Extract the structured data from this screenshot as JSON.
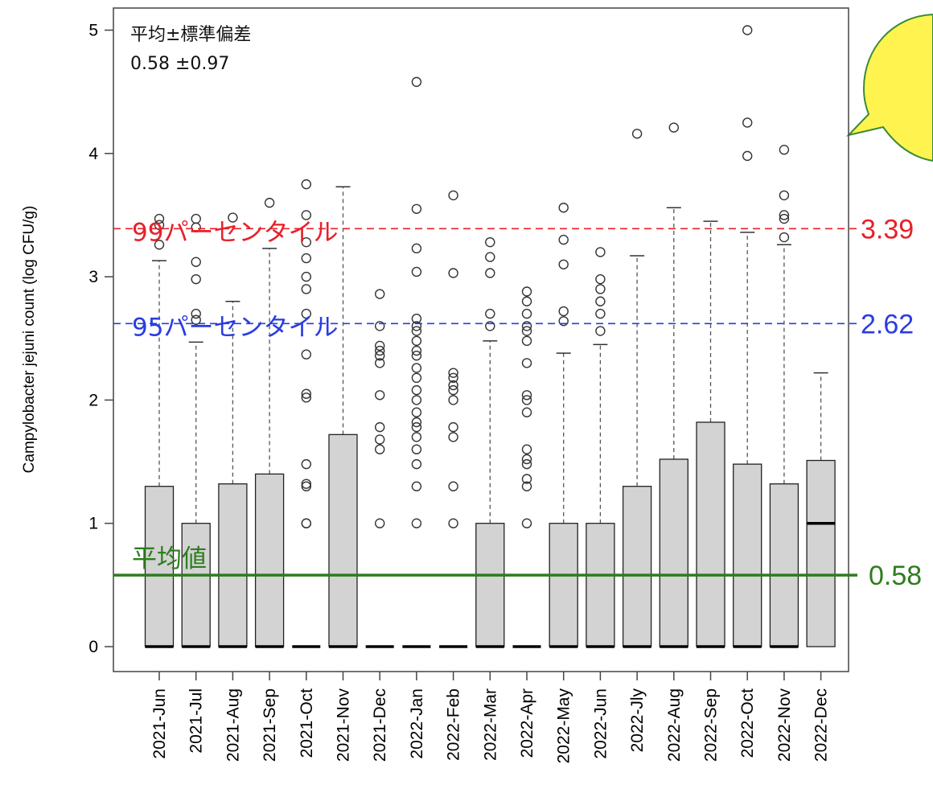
{
  "chart_data": {
    "type": "box",
    "title": "",
    "xlabel": "",
    "ylabel": "Campylobacter jejuni count (log CFU/g)",
    "ylim": [
      0,
      5
    ],
    "yticks": [
      "0",
      "1",
      "2",
      "3",
      "4",
      "5"
    ],
    "grid": false,
    "categories": [
      "2021-Jun",
      "2021-Jul",
      "2021-Aug",
      "2021-Sep",
      "2021-Oct",
      "2021-Nov",
      "2021-Dec",
      "2022-Jan",
      "2022-Feb",
      "2022-Mar",
      "2022-Apr",
      "2022-May",
      "2022-Jun",
      "2022-Jly",
      "2022-Aug",
      "2022-Sep",
      "2022-Oct",
      "2022-Nov",
      "2022-Dec"
    ],
    "boxes": [
      {
        "min": 0,
        "q1": 0,
        "median": 0,
        "q3": 1.3,
        "max": 3.13,
        "outliers": [
          3.26,
          3.42,
          3.47
        ]
      },
      {
        "min": 0,
        "q1": 0,
        "median": 0,
        "q3": 1.0,
        "max": 2.47,
        "outliers": [
          2.65,
          2.7,
          2.98,
          3.12,
          3.4,
          3.47
        ]
      },
      {
        "min": 0,
        "q1": 0,
        "median": 0,
        "q3": 1.32,
        "max": 2.8,
        "outliers": [
          3.48
        ]
      },
      {
        "min": 0,
        "q1": 0,
        "median": 0,
        "q3": 1.4,
        "max": 3.23,
        "outliers": [
          3.6
        ]
      },
      {
        "min": 0,
        "q1": 0,
        "median": 0,
        "q3": 0,
        "max": 0,
        "outliers": [
          1.0,
          1.0,
          1.3,
          1.32,
          1.48,
          2.02,
          2.05,
          2.37,
          2.7,
          2.9,
          3.0,
          3.15,
          3.28,
          3.5,
          3.75
        ]
      },
      {
        "min": 0,
        "q1": 0,
        "median": 0,
        "q3": 1.72,
        "max": 3.73,
        "outliers": []
      },
      {
        "min": 0,
        "q1": 0,
        "median": 0,
        "q3": 0,
        "max": 0,
        "outliers": [
          1.0,
          1.6,
          1.68,
          1.78,
          2.04,
          2.3,
          2.36,
          2.4,
          2.44,
          2.6,
          2.86
        ]
      },
      {
        "min": 0,
        "q1": 0,
        "median": 0,
        "q3": 0,
        "max": 0,
        "outliers": [
          1.0,
          1.3,
          1.48,
          1.6,
          1.7,
          1.78,
          1.82,
          1.9,
          2.0,
          2.08,
          2.18,
          2.26,
          2.36,
          2.4,
          2.48,
          2.56,
          2.6,
          2.66,
          3.04,
          3.23,
          3.55,
          4.58
        ]
      },
      {
        "min": 0,
        "q1": 0,
        "median": 0,
        "q3": 0,
        "max": 0,
        "outliers": [
          1.0,
          1.3,
          1.7,
          1.78,
          2.0,
          2.08,
          2.12,
          2.18,
          2.22,
          3.03,
          3.66
        ]
      },
      {
        "min": 0,
        "q1": 0,
        "median": 0,
        "q3": 1.0,
        "max": 2.48,
        "outliers": [
          2.6,
          2.7,
          3.03,
          3.16,
          3.28
        ]
      },
      {
        "min": 0,
        "q1": 0,
        "median": 0,
        "q3": 0,
        "max": 0,
        "outliers": [
          1.0,
          1.3,
          1.36,
          1.48,
          1.52,
          1.6,
          1.9,
          2.0,
          2.04,
          2.3,
          2.48,
          2.56,
          2.6,
          2.7,
          2.8,
          2.88
        ]
      },
      {
        "min": 0,
        "q1": 0,
        "median": 0,
        "q3": 1.0,
        "max": 2.38,
        "outliers": [
          2.64,
          2.72,
          3.1,
          3.3,
          3.56
        ]
      },
      {
        "min": 0,
        "q1": 0,
        "median": 0,
        "q3": 1.0,
        "max": 2.45,
        "outliers": [
          2.56,
          2.7,
          2.8,
          2.9,
          2.98,
          3.2
        ]
      },
      {
        "min": 0,
        "q1": 0,
        "median": 0,
        "q3": 1.3,
        "max": 3.17,
        "outliers": [
          4.16
        ]
      },
      {
        "min": 0,
        "q1": 0,
        "median": 0,
        "q3": 1.52,
        "max": 3.56,
        "outliers": [
          4.21
        ]
      },
      {
        "min": 0,
        "q1": 0,
        "median": 0,
        "q3": 1.82,
        "max": 3.45,
        "outliers": []
      },
      {
        "min": 0,
        "q1": 0,
        "median": 0,
        "q3": 1.48,
        "max": 3.36,
        "outliers": [
          3.98,
          4.25,
          5.0
        ]
      },
      {
        "min": 0,
        "q1": 0,
        "median": 0,
        "q3": 1.32,
        "max": 3.26,
        "outliers": [
          3.32,
          3.47,
          3.5,
          3.66,
          4.03
        ]
      },
      {
        "min": 0,
        "q1": 0,
        "median": 1.0,
        "q3": 1.51,
        "max": 2.22,
        "outliers": []
      }
    ],
    "reference_lines": [
      {
        "label": "99パーセンタイル",
        "value": 3.39,
        "value_text": "3.39",
        "color": "#e8202a",
        "style": "dashed"
      },
      {
        "label": "95パーセンタイル",
        "value": 2.62,
        "value_text": "2.62",
        "color": "#2a3de0",
        "style": "dashed"
      },
      {
        "label": "平均値",
        "value": 0.58,
        "value_text": "0.58",
        "color": "#2e7d1e",
        "style": "solid"
      }
    ],
    "stats_box": {
      "title": "平均±標準偏差",
      "value": "0.58 ±0.97"
    }
  },
  "colors": {
    "box_fill": "#d3d3d3",
    "speech_bubble": "#fff44f"
  }
}
